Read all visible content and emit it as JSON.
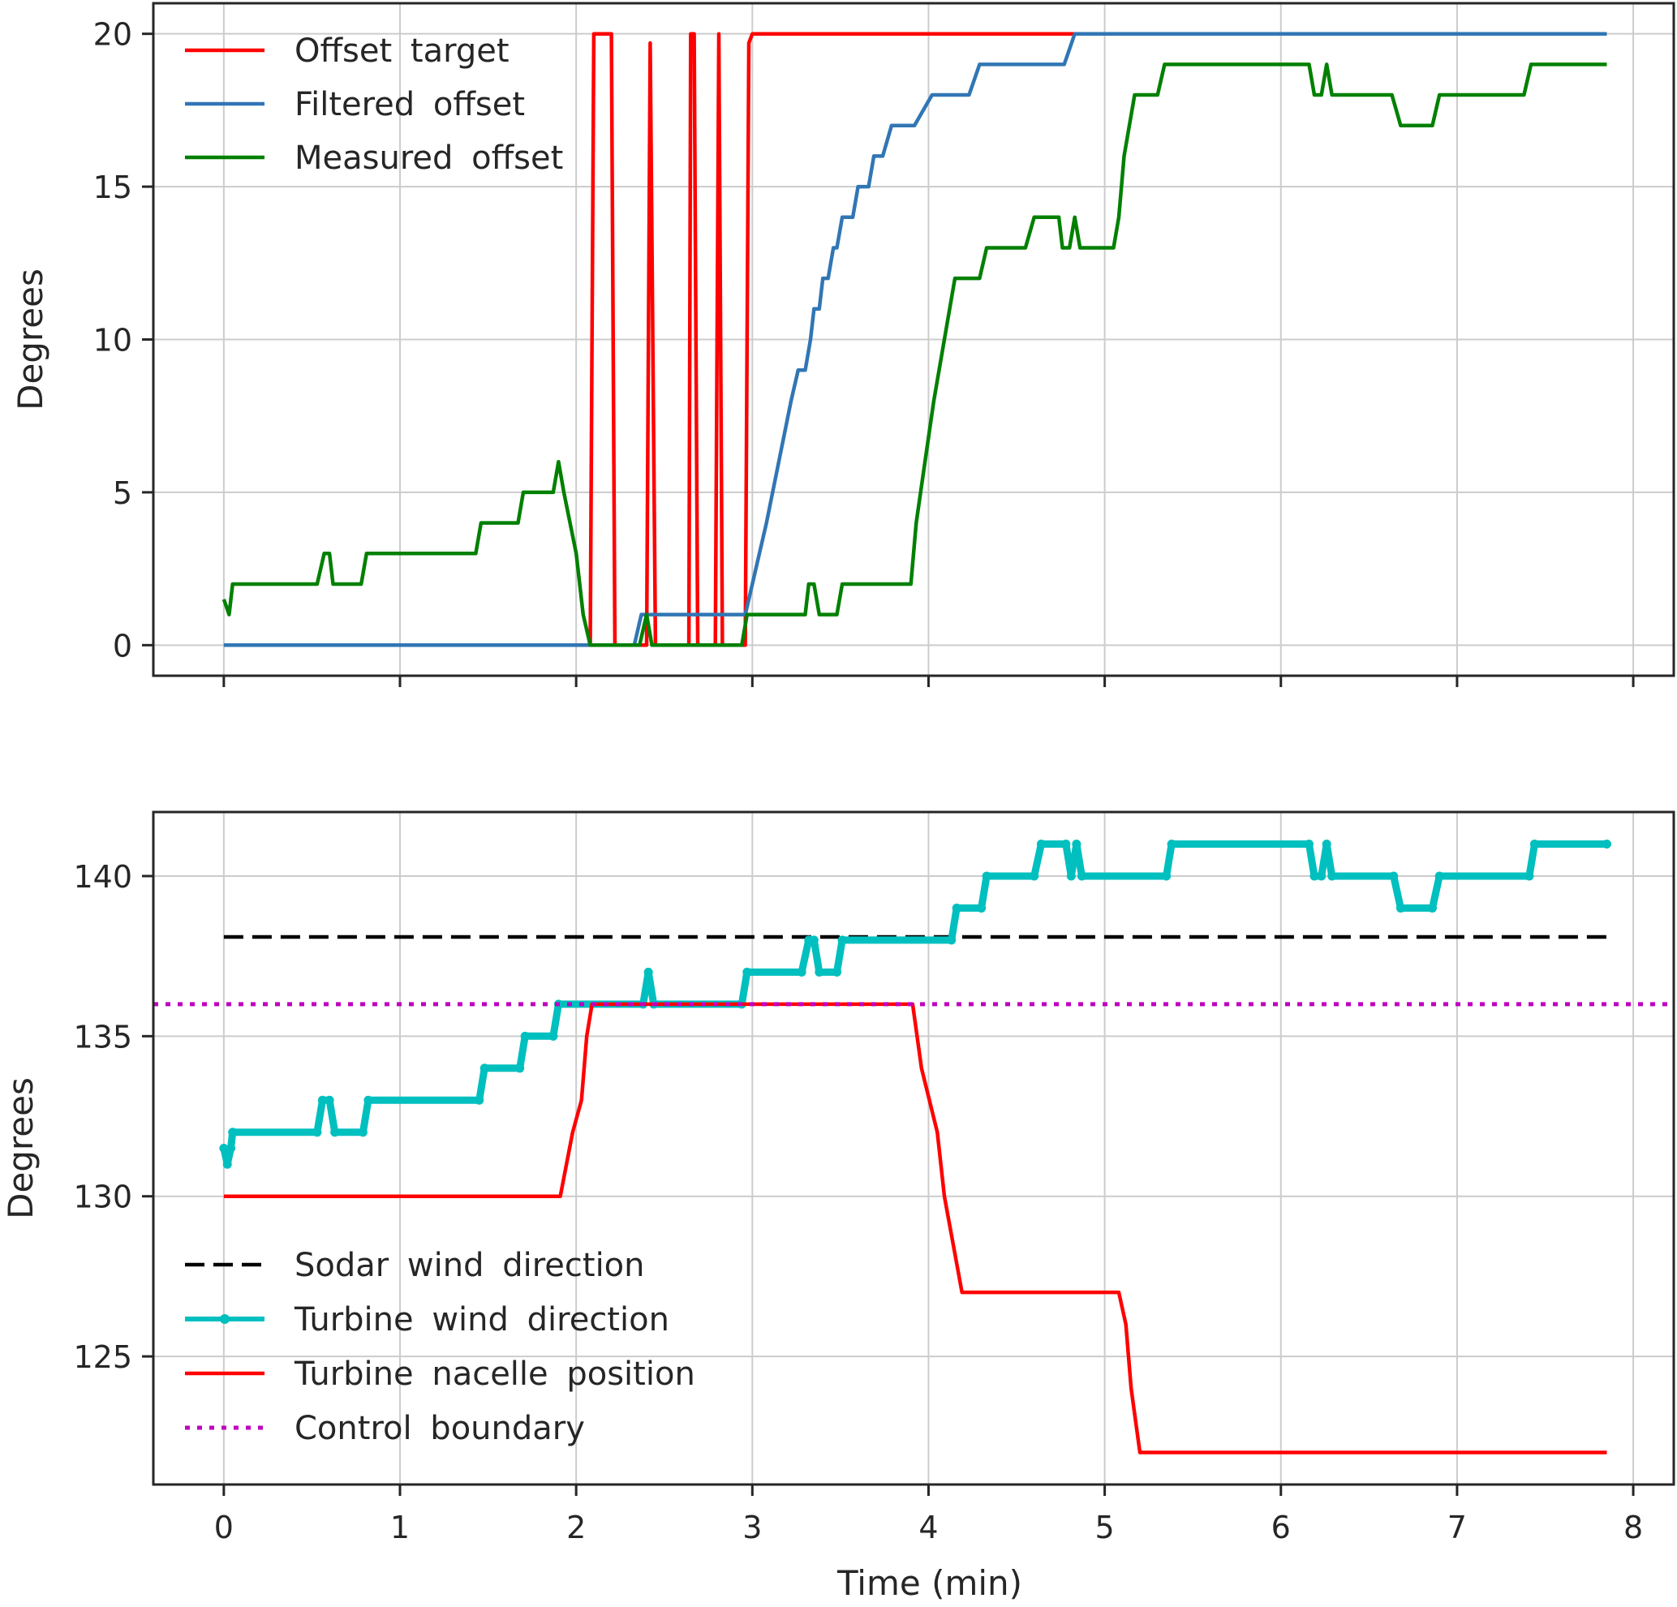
{
  "chart_data": [
    {
      "type": "line",
      "title": "",
      "xlabel": "",
      "ylabel": "Degrees",
      "xlim": [
        -0.4,
        8.23
      ],
      "ylim": [
        -1,
        21
      ],
      "xticks": [
        0,
        1,
        2,
        3,
        4,
        5,
        6,
        7,
        8
      ],
      "yticks": [
        0,
        5,
        10,
        15,
        20
      ],
      "grid": true,
      "legend_position": "top-left",
      "series": [
        {
          "name": "Offset target",
          "color": "#ff0000",
          "style": "solid",
          "points": [
            [
              0.0,
              0
            ],
            [
              2.08,
              0
            ],
            [
              2.1,
              20
            ],
            [
              2.2,
              20
            ],
            [
              2.22,
              0
            ],
            [
              2.4,
              0
            ],
            [
              2.42,
              19.7
            ],
            [
              2.45,
              0
            ],
            [
              2.64,
              0
            ],
            [
              2.65,
              20
            ],
            [
              2.67,
              20
            ],
            [
              2.69,
              0
            ],
            [
              2.79,
              0
            ],
            [
              2.81,
              20
            ],
            [
              2.83,
              0
            ],
            [
              2.96,
              0
            ],
            [
              2.98,
              19.7
            ],
            [
              3.0,
              20
            ],
            [
              7.85,
              20
            ]
          ]
        },
        {
          "name": "Filtered offset",
          "color": "#3176b4",
          "style": "solid",
          "points": [
            [
              0.0,
              0
            ],
            [
              2.33,
              0
            ],
            [
              2.37,
              1
            ],
            [
              2.96,
              1
            ],
            [
              3.08,
              4
            ],
            [
              3.15,
              6
            ],
            [
              3.22,
              8
            ],
            [
              3.26,
              9
            ],
            [
              3.3,
              9
            ],
            [
              3.33,
              10
            ],
            [
              3.35,
              11
            ],
            [
              3.38,
              11
            ],
            [
              3.4,
              12
            ],
            [
              3.43,
              12
            ],
            [
              3.46,
              13
            ],
            [
              3.48,
              13
            ],
            [
              3.51,
              14
            ],
            [
              3.57,
              14
            ],
            [
              3.6,
              15
            ],
            [
              3.66,
              15
            ],
            [
              3.69,
              16
            ],
            [
              3.74,
              16
            ],
            [
              3.79,
              17
            ],
            [
              3.92,
              17
            ],
            [
              4.02,
              18
            ],
            [
              4.23,
              18
            ],
            [
              4.29,
              19
            ],
            [
              4.77,
              19
            ],
            [
              4.83,
              20
            ],
            [
              7.85,
              20
            ]
          ]
        },
        {
          "name": "Measured offset",
          "color": "#008000",
          "style": "solid",
          "points": [
            [
              0.0,
              1.5
            ],
            [
              0.03,
              1
            ],
            [
              0.05,
              2
            ],
            [
              0.53,
              2
            ],
            [
              0.57,
              3
            ],
            [
              0.6,
              3
            ],
            [
              0.62,
              2
            ],
            [
              0.78,
              2
            ],
            [
              0.81,
              3
            ],
            [
              1.43,
              3
            ],
            [
              1.46,
              4
            ],
            [
              1.67,
              4
            ],
            [
              1.7,
              5
            ],
            [
              1.87,
              5
            ],
            [
              1.9,
              6
            ],
            [
              1.93,
              5
            ],
            [
              2.0,
              3
            ],
            [
              2.04,
              1
            ],
            [
              2.08,
              0
            ],
            [
              2.36,
              0
            ],
            [
              2.4,
              1
            ],
            [
              2.43,
              0
            ],
            [
              2.94,
              0
            ],
            [
              2.97,
              1
            ],
            [
              3.3,
              1
            ],
            [
              3.32,
              2
            ],
            [
              3.35,
              2
            ],
            [
              3.38,
              1
            ],
            [
              3.48,
              1
            ],
            [
              3.51,
              2
            ],
            [
              3.9,
              2
            ],
            [
              3.93,
              4
            ],
            [
              3.98,
              6
            ],
            [
              4.03,
              8
            ],
            [
              4.09,
              10
            ],
            [
              4.15,
              12
            ],
            [
              4.29,
              12
            ],
            [
              4.33,
              13
            ],
            [
              4.55,
              13
            ],
            [
              4.6,
              14
            ],
            [
              4.74,
              14
            ],
            [
              4.76,
              13
            ],
            [
              4.8,
              13
            ],
            [
              4.83,
              14
            ],
            [
              4.86,
              13
            ],
            [
              5.05,
              13
            ],
            [
              5.08,
              14
            ],
            [
              5.11,
              16
            ],
            [
              5.17,
              18
            ],
            [
              5.3,
              18
            ],
            [
              5.34,
              19
            ],
            [
              6.16,
              19
            ],
            [
              6.19,
              18
            ],
            [
              6.23,
              18
            ],
            [
              6.26,
              19
            ],
            [
              6.29,
              18
            ],
            [
              6.63,
              18
            ],
            [
              6.68,
              17
            ],
            [
              6.86,
              17
            ],
            [
              6.9,
              18
            ],
            [
              7.38,
              18
            ],
            [
              7.42,
              19
            ],
            [
              7.85,
              19
            ]
          ]
        }
      ]
    },
    {
      "type": "line",
      "title": "",
      "xlabel": "Time (min)",
      "ylabel": "Degrees",
      "xlim": [
        -0.4,
        8.23
      ],
      "ylim": [
        121,
        142
      ],
      "xticks": [
        0,
        1,
        2,
        3,
        4,
        5,
        6,
        7,
        8
      ],
      "yticks": [
        125,
        130,
        135,
        140
      ],
      "grid": true,
      "legend_position": "lower-left",
      "series": [
        {
          "name": "Sodar wind direction",
          "color": "#000000",
          "style": "dashed",
          "points": [
            [
              0.0,
              138.1
            ],
            [
              7.85,
              138.1
            ]
          ]
        },
        {
          "name": "Turbine wind direction",
          "color": "#00bfbf",
          "style": "solid-markers",
          "points": [
            [
              0.0,
              131.5
            ],
            [
              0.02,
              131
            ],
            [
              0.04,
              131.5
            ],
            [
              0.05,
              132
            ],
            [
              0.53,
              132
            ],
            [
              0.56,
              133
            ],
            [
              0.6,
              133
            ],
            [
              0.63,
              132
            ],
            [
              0.79,
              132
            ],
            [
              0.82,
              133
            ],
            [
              1.45,
              133
            ],
            [
              1.48,
              134
            ],
            [
              1.68,
              134
            ],
            [
              1.71,
              135
            ],
            [
              1.87,
              135
            ],
            [
              1.9,
              136
            ],
            [
              2.38,
              136
            ],
            [
              2.41,
              137
            ],
            [
              2.44,
              136
            ],
            [
              2.94,
              136
            ],
            [
              2.97,
              137
            ],
            [
              3.28,
              137
            ],
            [
              3.32,
              138
            ],
            [
              3.35,
              138
            ],
            [
              3.38,
              137
            ],
            [
              3.48,
              137
            ],
            [
              3.51,
              138
            ],
            [
              4.13,
              138
            ],
            [
              4.16,
              139
            ],
            [
              4.3,
              139
            ],
            [
              4.33,
              140
            ],
            [
              4.6,
              140
            ],
            [
              4.64,
              141
            ],
            [
              4.78,
              141
            ],
            [
              4.81,
              140
            ],
            [
              4.84,
              141
            ],
            [
              4.87,
              140
            ],
            [
              5.35,
              140
            ],
            [
              5.38,
              141
            ],
            [
              6.16,
              141
            ],
            [
              6.19,
              140
            ],
            [
              6.23,
              140
            ],
            [
              6.26,
              141
            ],
            [
              6.29,
              140
            ],
            [
              6.64,
              140
            ],
            [
              6.68,
              139
            ],
            [
              6.86,
              139
            ],
            [
              6.9,
              140
            ],
            [
              7.41,
              140
            ],
            [
              7.44,
              141
            ],
            [
              7.85,
              141
            ]
          ]
        },
        {
          "name": "Turbine nacelle position",
          "color": "#ff0000",
          "style": "solid",
          "points": [
            [
              0.0,
              130
            ],
            [
              1.91,
              130
            ],
            [
              1.98,
              132
            ],
            [
              2.03,
              133
            ],
            [
              2.06,
              135
            ],
            [
              2.09,
              136
            ],
            [
              3.91,
              136
            ],
            [
              3.96,
              134
            ],
            [
              4.05,
              132
            ],
            [
              4.09,
              130
            ],
            [
              4.19,
              127
            ],
            [
              5.08,
              127
            ],
            [
              5.12,
              126
            ],
            [
              5.15,
              124
            ],
            [
              5.2,
              122
            ],
            [
              7.85,
              122
            ]
          ]
        },
        {
          "name": "Control boundary",
          "color": "#bf00bf",
          "style": "dotted",
          "points": [
            [
              -0.4,
              136
            ],
            [
              8.23,
              136
            ]
          ]
        }
      ]
    }
  ]
}
